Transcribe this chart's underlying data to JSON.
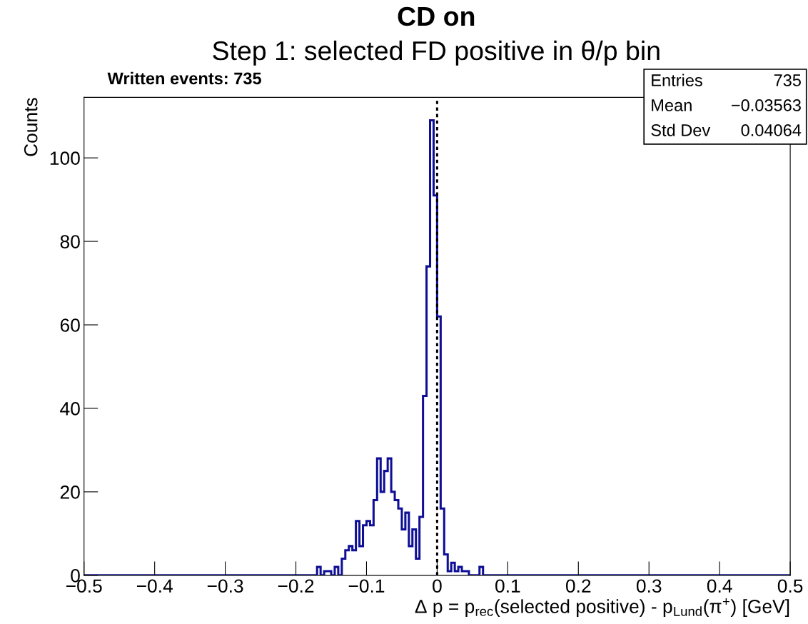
{
  "chart_data": {
    "type": "histogram",
    "title": "CD on",
    "subtitle": "Step 1: selected FD positive in θ/p bin",
    "xlabel": "Δ p = p$_{rec}$(selected positive) - p$_{Lund}$(π$^{+}$) [GeV]",
    "ylabel": "Counts",
    "annotations": [
      "Written events: 735",
      "Entries",
      "735",
      "Mean",
      "−0.03563",
      "Std Dev",
      "0.04064"
    ],
    "bins": [
      -0.5,
      -0.17,
      -0.165,
      -0.16,
      -0.155,
      -0.15,
      -0.145,
      -0.14,
      -0.135,
      -0.13,
      -0.125,
      -0.12,
      -0.115,
      -0.11,
      -0.105,
      -0.1,
      -0.095,
      -0.09,
      -0.085,
      -0.08,
      -0.075,
      -0.07,
      -0.065,
      -0.06,
      -0.055,
      -0.05,
      -0.045,
      -0.04,
      -0.035,
      -0.03,
      -0.025,
      -0.02,
      -0.015,
      -0.01,
      -0.005,
      0,
      0.005,
      0.01,
      0.015,
      0.02,
      0.025,
      0.03,
      0.035,
      0.04,
      0.045,
      0.05,
      0.055,
      0.06,
      0.065,
      0.5
    ],
    "values": [
      0,
      2,
      0,
      1,
      1,
      0,
      2,
      0,
      4,
      6,
      7,
      6,
      13,
      7,
      12,
      13,
      12,
      18,
      28,
      20,
      25,
      28,
      20,
      18,
      16,
      11,
      15,
      7,
      11,
      4,
      14,
      43,
      74,
      109,
      91,
      62,
      16,
      5,
      1,
      3,
      1,
      2,
      1,
      1,
      0,
      0,
      0,
      2,
      0
    ],
    "color": "#0f0f96",
    "xlim": [
      -0.5,
      0.5
    ],
    "xticks": [
      {
        "value": -0.5,
        "label": "−0.5"
      },
      {
        "value": -0.4,
        "label": "−0.4"
      },
      {
        "value": -0.3,
        "label": "−0.3"
      },
      {
        "value": -0.2,
        "label": "−0.2"
      },
      {
        "value": -0.1,
        "label": "−0.1"
      },
      0,
      0.1,
      0.2,
      0.3,
      0.4,
      0.5
    ],
    "ylim": [
      0,
      114.5
    ],
    "yticks": [
      0,
      20,
      40,
      60,
      80,
      100
    ],
    "ref_lines": [
      {
        "axis": "x",
        "value": 0,
        "color": "#000000",
        "line_style": "dotted"
      }
    ]
  }
}
